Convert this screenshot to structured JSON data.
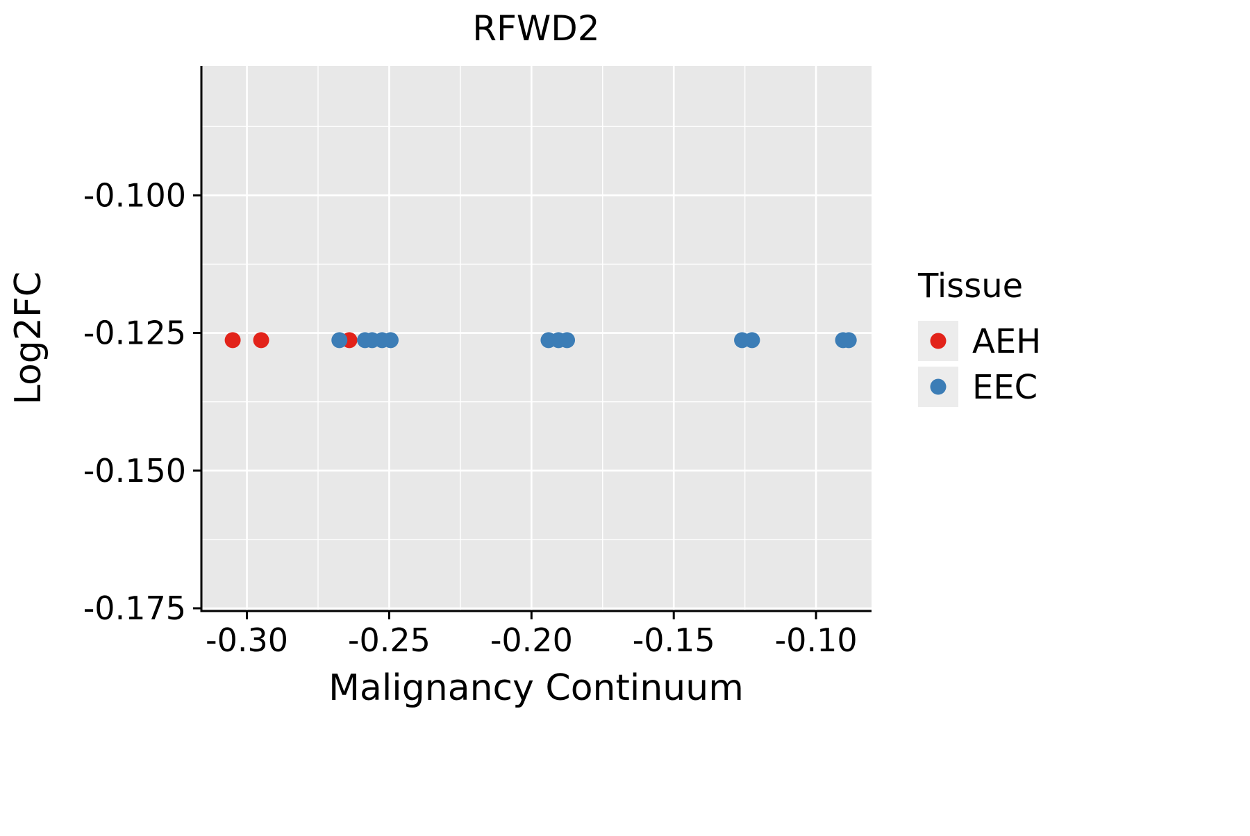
{
  "title": "RFWD2",
  "chart_data": {
    "type": "scatter",
    "title": "RFWD2",
    "xlabel": "Malignancy Continuum",
    "ylabel": "Log2FC",
    "xlim": [
      -0.316,
      -0.0805
    ],
    "ylim": [
      -0.1755,
      -0.0765
    ],
    "x_ticks": [
      -0.3,
      -0.25,
      -0.2,
      -0.15,
      -0.1
    ],
    "x_tick_labels": [
      "-0.30",
      "-0.25",
      "-0.20",
      "-0.15",
      "-0.10"
    ],
    "y_ticks": [
      -0.1,
      -0.125,
      -0.15,
      -0.175
    ],
    "y_tick_labels": [
      "-0.100",
      "-0.125",
      "-0.150",
      "-0.175"
    ],
    "x_minor_ticks": [
      -0.275,
      -0.225,
      -0.175,
      -0.125
    ],
    "y_minor_ticks": [
      -0.0875,
      -0.1125,
      -0.1375,
      -0.1625
    ],
    "grid": true,
    "panel_background": "#e8e8e8",
    "gridline_color": "#ffffff",
    "legend": {
      "title": "Tissue",
      "position": "right",
      "key_background": "#ececec"
    },
    "series": [
      {
        "name": "AEH",
        "color": "#e2231a",
        "points": [
          {
            "x": -0.305,
            "y": -0.1263
          },
          {
            "x": -0.295,
            "y": -0.1263
          },
          {
            "x": -0.264,
            "y": -0.1263
          }
        ]
      },
      {
        "name": "EEC",
        "color": "#3c7db6",
        "points": [
          {
            "x": -0.2675,
            "y": -0.1263
          },
          {
            "x": -0.2585,
            "y": -0.1263
          },
          {
            "x": -0.256,
            "y": -0.1263
          },
          {
            "x": -0.2525,
            "y": -0.1263
          },
          {
            "x": -0.2495,
            "y": -0.1263
          },
          {
            "x": -0.194,
            "y": -0.1263
          },
          {
            "x": -0.1905,
            "y": -0.1263
          },
          {
            "x": -0.1875,
            "y": -0.1263
          },
          {
            "x": -0.126,
            "y": -0.1263
          },
          {
            "x": -0.1225,
            "y": -0.1263
          },
          {
            "x": -0.0905,
            "y": -0.1263
          },
          {
            "x": -0.0885,
            "y": -0.1263
          }
        ]
      }
    ]
  }
}
